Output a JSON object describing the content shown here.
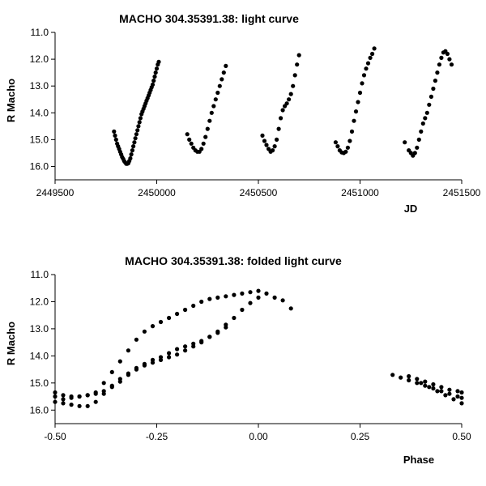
{
  "chart_data": [
    {
      "type": "scatter",
      "title": "MACHO 304.35391.38: light curve",
      "xlabel": "JD",
      "ylabel": "R Macho",
      "xlim": [
        2449500,
        2451500
      ],
      "ylim": [
        16.5,
        11.0
      ],
      "y_inverted": true,
      "grid": false,
      "xticks": [
        "2449500",
        "2450000",
        "2450500",
        "2451000",
        "2451500"
      ],
      "yticks": [
        "11.0",
        "12.0",
        "13.0",
        "14.0",
        "15.0",
        "16.0"
      ],
      "point_color": "#000000",
      "series": [
        {
          "x": [
            2449790,
            2449795,
            2449800,
            2449805,
            2449810,
            2449815,
            2449820,
            2449825,
            2449830,
            2449835,
            2449840,
            2449845,
            2449850,
            2449855,
            2449860,
            2449865,
            2449870,
            2449875,
            2449880,
            2449885,
            2449890,
            2449895,
            2449900,
            2449905,
            2449910,
            2449915,
            2449920,
            2449925,
            2449930,
            2449935,
            2449940,
            2449945,
            2449950,
            2449955,
            2449960,
            2449965,
            2449970,
            2449975,
            2449980,
            2449985,
            2449990,
            2449995,
            2450000,
            2450005,
            2450010
          ],
          "y": [
            14.7,
            14.85,
            15.0,
            15.15,
            15.25,
            15.35,
            15.45,
            15.55,
            15.65,
            15.72,
            15.8,
            15.85,
            15.9,
            15.9,
            15.88,
            15.8,
            15.7,
            15.55,
            15.4,
            15.25,
            15.1,
            14.95,
            14.8,
            14.65,
            14.5,
            14.35,
            14.2,
            14.05,
            13.95,
            13.85,
            13.75,
            13.65,
            13.55,
            13.45,
            13.35,
            13.25,
            13.15,
            13.05,
            12.95,
            12.8,
            12.65,
            12.5,
            12.35,
            12.2,
            12.1
          ]
        },
        {
          "x": [
            2450150,
            2450160,
            2450170,
            2450180,
            2450190,
            2450200,
            2450210,
            2450220,
            2450230,
            2450240,
            2450250,
            2450260,
            2450270,
            2450280,
            2450290,
            2450300,
            2450310,
            2450320,
            2450330,
            2450340
          ],
          "y": [
            14.8,
            15.0,
            15.15,
            15.3,
            15.4,
            15.45,
            15.45,
            15.35,
            15.15,
            14.9,
            14.6,
            14.3,
            14.0,
            13.75,
            13.5,
            13.25,
            13.0,
            12.75,
            12.5,
            12.25
          ]
        },
        {
          "x": [
            2450520,
            2450530,
            2450540,
            2450550,
            2450560,
            2450570,
            2450580,
            2450590,
            2450600,
            2450610,
            2450620,
            2450630,
            2450640,
            2450650,
            2450660,
            2450670,
            2450680,
            2450690,
            2450700
          ],
          "y": [
            14.85,
            15.05,
            15.2,
            15.35,
            15.45,
            15.4,
            15.25,
            15.0,
            14.6,
            14.2,
            13.9,
            13.75,
            13.65,
            13.5,
            13.3,
            13.0,
            12.6,
            12.2,
            11.85
          ]
        },
        {
          "x": [
            2450880,
            2450890,
            2450900,
            2450910,
            2450920,
            2450930,
            2450940,
            2450950,
            2450960,
            2450970,
            2450980,
            2450990,
            2451000,
            2451010,
            2451020,
            2451030,
            2451040,
            2451050,
            2451060,
            2451070
          ],
          "y": [
            15.1,
            15.25,
            15.4,
            15.48,
            15.5,
            15.45,
            15.3,
            15.05,
            14.7,
            14.3,
            13.95,
            13.6,
            13.25,
            12.9,
            12.6,
            12.35,
            12.15,
            11.95,
            11.8,
            11.6
          ]
        },
        {
          "x": [
            2451220,
            2451240,
            2451250,
            2451260,
            2451270,
            2451280,
            2451290,
            2451300,
            2451310,
            2451320,
            2451330,
            2451340,
            2451350,
            2451360,
            2451370,
            2451380,
            2451390,
            2451400,
            2451410,
            2451420,
            2451430,
            2451440,
            2451450
          ],
          "y": [
            15.1,
            15.4,
            15.5,
            15.6,
            15.5,
            15.3,
            15.0,
            14.7,
            14.4,
            14.2,
            14.0,
            13.7,
            13.4,
            13.1,
            12.8,
            12.5,
            12.2,
            11.95,
            11.75,
            11.7,
            11.8,
            12.0,
            12.2
          ]
        }
      ]
    },
    {
      "type": "scatter",
      "title": "MACHO 304.35391.38: folded light curve",
      "xlabel": "Phase",
      "ylabel": "R Macho",
      "xlim": [
        -0.5,
        0.5
      ],
      "ylim": [
        16.5,
        11.0
      ],
      "y_inverted": true,
      "grid": false,
      "xticks": [
        "-0.50",
        "-0.25",
        "0.00",
        "0.25",
        "0.50"
      ],
      "yticks": [
        "11.0",
        "12.0",
        "13.0",
        "14.0",
        "15.0",
        "16.0"
      ],
      "point_color": "#000000",
      "series": [
        {
          "x": [
            -0.5,
            -0.48,
            -0.46,
            -0.44,
            -0.42,
            -0.4,
            -0.38,
            -0.36,
            -0.34,
            -0.32,
            -0.3,
            -0.28,
            -0.26,
            -0.24,
            -0.22,
            -0.2,
            -0.18,
            -0.16,
            -0.14,
            -0.12,
            -0.1,
            -0.08,
            -0.06,
            -0.04,
            -0.02,
            0.0,
            0.02,
            0.04,
            0.06,
            0.08
          ],
          "y": [
            15.35,
            15.45,
            15.5,
            15.5,
            15.45,
            15.35,
            15.0,
            14.6,
            14.2,
            13.8,
            13.4,
            13.1,
            12.9,
            12.75,
            12.6,
            12.45,
            12.3,
            12.15,
            12.0,
            11.9,
            11.85,
            11.8,
            11.75,
            11.7,
            11.65,
            11.6,
            11.7,
            11.85,
            11.95,
            12.25
          ]
        },
        {
          "x": [
            -0.5,
            -0.48,
            -0.46,
            -0.44,
            -0.42,
            -0.4,
            -0.38,
            -0.36,
            -0.34,
            -0.32,
            -0.3,
            -0.28,
            -0.26,
            -0.24,
            -0.22,
            -0.2,
            -0.18,
            -0.16,
            -0.14,
            -0.12,
            -0.1,
            -0.08,
            -0.06,
            -0.04,
            -0.02,
            0.0
          ],
          "y": [
            15.7,
            15.75,
            15.8,
            15.85,
            15.85,
            15.7,
            15.4,
            15.1,
            14.85,
            14.65,
            14.5,
            14.35,
            14.25,
            14.15,
            14.05,
            13.95,
            13.8,
            13.65,
            13.5,
            13.3,
            13.1,
            12.85,
            12.6,
            12.3,
            12.05,
            11.85
          ]
        },
        {
          "x": [
            -0.5,
            -0.48,
            -0.46,
            -0.44,
            -0.42,
            -0.4,
            -0.38,
            -0.36,
            -0.34,
            -0.32,
            -0.3,
            -0.28,
            -0.26,
            -0.24,
            -0.22,
            -0.2,
            -0.18,
            -0.16,
            -0.14,
            -0.12,
            -0.1,
            -0.08
          ],
          "y": [
            15.5,
            15.6,
            15.55,
            15.5,
            15.45,
            15.4,
            15.3,
            15.15,
            14.95,
            14.7,
            14.45,
            14.3,
            14.15,
            14.05,
            13.9,
            13.75,
            13.65,
            13.55,
            13.45,
            13.3,
            13.15,
            12.95
          ]
        },
        {
          "x": [
            0.33,
            0.35,
            0.37,
            0.39,
            0.41,
            0.43,
            0.45,
            0.47,
            0.49,
            0.5
          ],
          "y": [
            14.7,
            14.8,
            14.9,
            15.0,
            15.1,
            15.2,
            15.3,
            15.4,
            15.5,
            15.55
          ]
        },
        {
          "x": [
            0.37,
            0.39,
            0.41,
            0.43,
            0.45,
            0.47,
            0.49,
            0.5
          ],
          "y": [
            14.75,
            14.85,
            14.95,
            15.05,
            15.15,
            15.25,
            15.3,
            15.35
          ]
        },
        {
          "x": [
            0.4,
            0.42,
            0.44,
            0.46,
            0.48,
            0.5
          ],
          "y": [
            15.0,
            15.15,
            15.3,
            15.45,
            15.6,
            15.75
          ]
        }
      ]
    }
  ]
}
